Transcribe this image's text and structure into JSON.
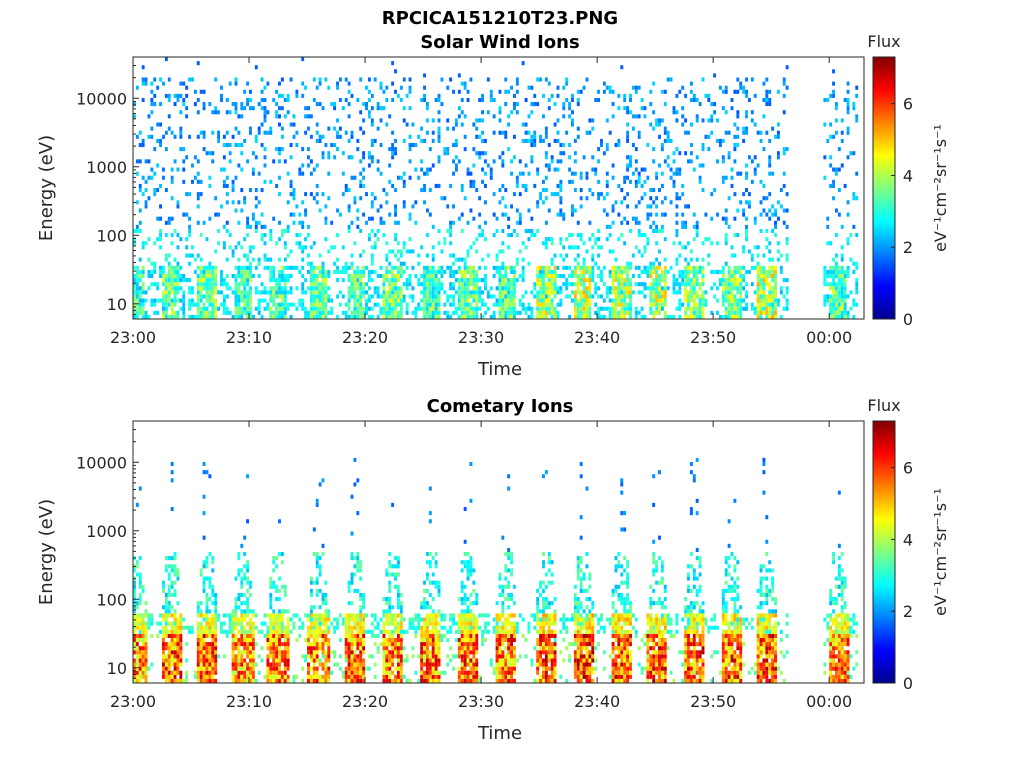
{
  "figure": {
    "title": "RPCICA151210T23.PNG"
  },
  "colormap": [
    "#00008f",
    "#0000ff",
    "#0080ff",
    "#00ffff",
    "#80ff80",
    "#ffff00",
    "#ff8000",
    "#ff0000",
    "#800000"
  ],
  "chart_data": [
    {
      "type": "heatmap",
      "title": "Solar Wind Ions",
      "xlabel": "Time",
      "ylabel": "Energy (eV)",
      "xticks": [
        "23:00",
        "23:10",
        "23:20",
        "23:30",
        "23:40",
        "23:50",
        "00:00"
      ],
      "xlim_minutes": [
        0,
        63
      ],
      "ylog": true,
      "ylim": [
        6,
        40000
      ],
      "yticks": [
        "10",
        "100",
        "1000",
        "10000"
      ],
      "colorbar": {
        "label": "Flux",
        "units": "eV⁻¹cm⁻²sr⁻¹s⁻¹",
        "min": 0,
        "max": 7.3,
        "ticks": [
          "0",
          "2",
          "4",
          "6"
        ]
      },
      "data_gap_minutes": [
        56.5,
        59.5
      ],
      "bursts": [
        {
          "t": 0.3,
          "flux": 4.0
        },
        {
          "t": 3.3,
          "flux": 4.6
        },
        {
          "t": 6.4,
          "flux": 4.5
        },
        {
          "t": 9.5,
          "flux": 4.2
        },
        {
          "t": 12.5,
          "flux": 4.3
        },
        {
          "t": 16.0,
          "flux": 4.4
        },
        {
          "t": 19.2,
          "flux": 4.3
        },
        {
          "t": 22.4,
          "flux": 4.5
        },
        {
          "t": 25.7,
          "flux": 4.3
        },
        {
          "t": 28.9,
          "flux": 4.4
        },
        {
          "t": 32.2,
          "flux": 4.3
        },
        {
          "t": 35.6,
          "flux": 5.0
        },
        {
          "t": 38.8,
          "flux": 5.2
        },
        {
          "t": 42.1,
          "flux": 5.0
        },
        {
          "t": 45.2,
          "flux": 5.1
        },
        {
          "t": 48.4,
          "flux": 4.7
        },
        {
          "t": 51.6,
          "flux": 4.6
        },
        {
          "t": 54.6,
          "flux": 5.2
        },
        {
          "t": 60.8,
          "flux": 4.4
        }
      ]
    },
    {
      "type": "heatmap",
      "title": "Cometary Ions",
      "xlabel": "Time",
      "ylabel": "Energy (eV)",
      "xticks": [
        "23:00",
        "23:10",
        "23:20",
        "23:30",
        "23:40",
        "23:50",
        "00:00"
      ],
      "xlim_minutes": [
        0,
        63
      ],
      "ylog": true,
      "ylim": [
        6,
        40000
      ],
      "yticks": [
        "10",
        "100",
        "1000",
        "10000"
      ],
      "colorbar": {
        "label": "Flux",
        "units": "eV⁻¹cm⁻²sr⁻¹s⁻¹",
        "min": 0,
        "max": 7.3,
        "ticks": [
          "0",
          "2",
          "4",
          "6"
        ]
      },
      "data_gap_minutes": [
        56.5,
        59.5
      ],
      "bursts": [
        {
          "t": 0.3,
          "flux": 6.6
        },
        {
          "t": 3.3,
          "flux": 7.0
        },
        {
          "t": 6.4,
          "flux": 6.8
        },
        {
          "t": 9.5,
          "flux": 6.6
        },
        {
          "t": 12.5,
          "flux": 6.7
        },
        {
          "t": 16.0,
          "flux": 6.8
        },
        {
          "t": 19.2,
          "flux": 6.9
        },
        {
          "t": 22.4,
          "flux": 6.7
        },
        {
          "t": 25.7,
          "flux": 6.8
        },
        {
          "t": 28.9,
          "flux": 6.9
        },
        {
          "t": 32.2,
          "flux": 6.8
        },
        {
          "t": 35.6,
          "flux": 7.1
        },
        {
          "t": 38.8,
          "flux": 7.2
        },
        {
          "t": 42.1,
          "flux": 7.1
        },
        {
          "t": 45.2,
          "flux": 7.1
        },
        {
          "t": 48.4,
          "flux": 7.0
        },
        {
          "t": 51.6,
          "flux": 7.0
        },
        {
          "t": 54.6,
          "flux": 7.1
        },
        {
          "t": 60.8,
          "flux": 6.8
        }
      ]
    }
  ]
}
